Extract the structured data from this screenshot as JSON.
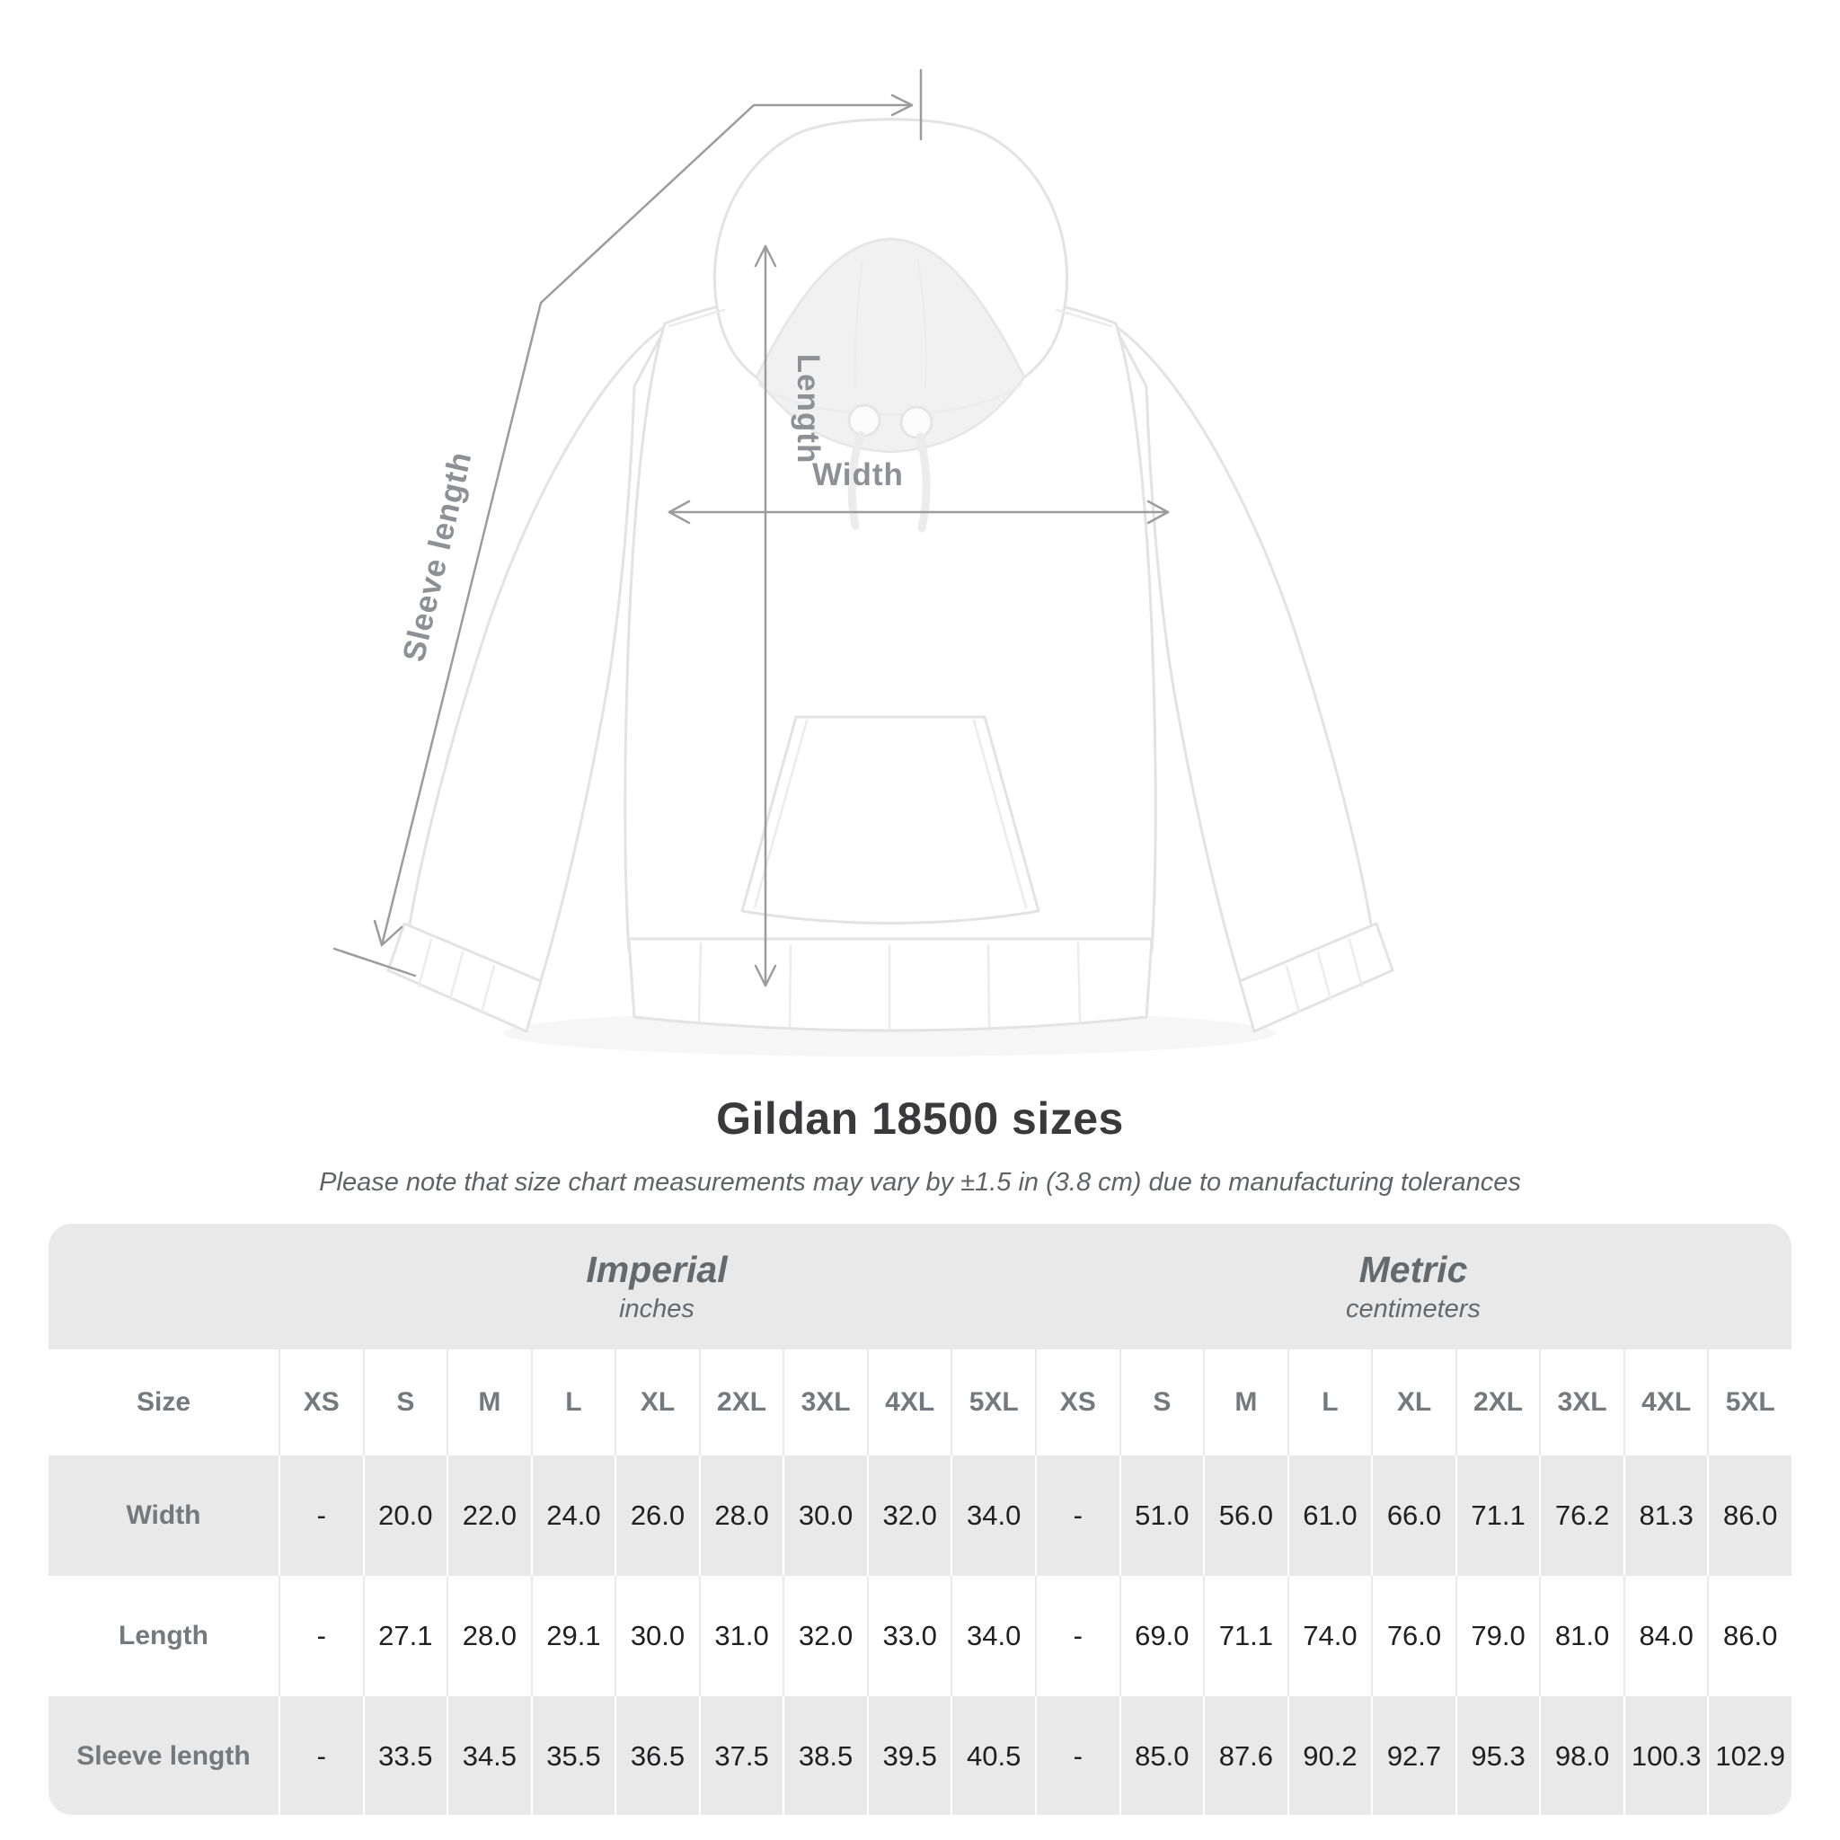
{
  "diagram": {
    "width_label": "Width",
    "length_label": "Length",
    "sleeve_length_label": "Sleeve length"
  },
  "title": "Gildan 18500 sizes",
  "subtitle": "Please note that size chart measurements may vary by ±1.5 in (3.8 cm) due to manufacturing tolerances",
  "table": {
    "size_header": "Size",
    "groups": [
      {
        "label": "Imperial",
        "sublabel": "inches"
      },
      {
        "label": "Metric",
        "sublabel": "centimeters"
      }
    ],
    "sizes": [
      "XS",
      "S",
      "M",
      "L",
      "XL",
      "2XL",
      "3XL",
      "4XL",
      "5XL"
    ],
    "rows": [
      {
        "label": "Width",
        "imperial": [
          "-",
          "20.0",
          "22.0",
          "24.0",
          "26.0",
          "28.0",
          "30.0",
          "32.0",
          "34.0"
        ],
        "metric": [
          "-",
          "51.0",
          "56.0",
          "61.0",
          "66.0",
          "71.1",
          "76.2",
          "81.3",
          "86.0"
        ]
      },
      {
        "label": "Length",
        "imperial": [
          "-",
          "27.1",
          "28.0",
          "29.1",
          "30.0",
          "31.0",
          "32.0",
          "33.0",
          "34.0"
        ],
        "metric": [
          "-",
          "69.0",
          "71.1",
          "74.0",
          "76.0",
          "79.0",
          "81.0",
          "84.0",
          "86.0"
        ]
      },
      {
        "label": "Sleeve length",
        "imperial": [
          "-",
          "33.5",
          "34.5",
          "35.5",
          "36.5",
          "37.5",
          "38.5",
          "39.5",
          "40.5"
        ],
        "metric": [
          "-",
          "85.0",
          "87.6",
          "90.2",
          "92.7",
          "95.3",
          "98.0",
          "100.3",
          "102.9"
        ]
      }
    ]
  },
  "colors": {
    "stripe": "#e9e9ea",
    "header_text": "#74797d",
    "value_text": "#202022",
    "annotation": "#9a9c9e",
    "title_text": "#3a3a3c"
  }
}
